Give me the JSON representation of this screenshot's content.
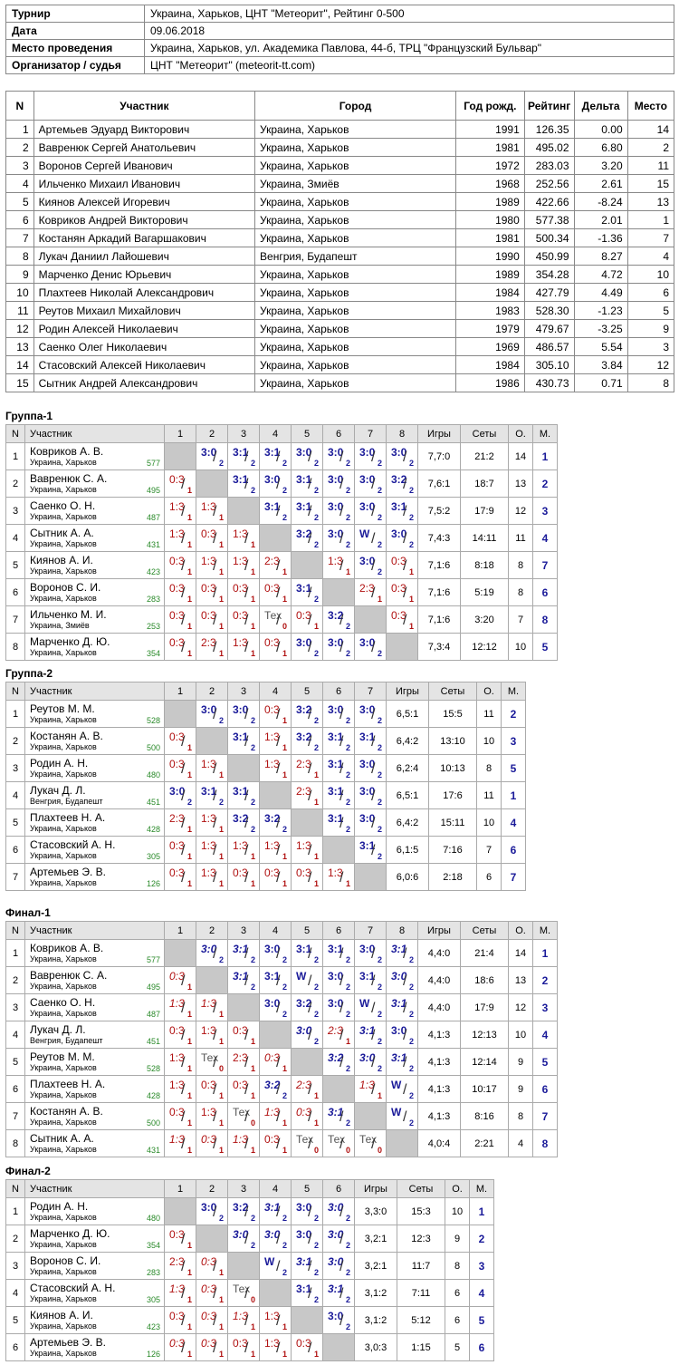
{
  "info": [
    {
      "k": "Турнир",
      "v": "Украина, Харьков, ЦНТ \"Метеорит\", Рейтинг 0-500"
    },
    {
      "k": "Дата",
      "v": "09.06.2018"
    },
    {
      "k": "Место проведения",
      "v": "Украина, Харьков, ул. Академика Павлова, 44-б, ТРЦ \"Французский Бульвар\""
    },
    {
      "k": "Организатор / судья",
      "v": "ЦНТ \"Метеорит\" (meteorit-tt.com)"
    }
  ],
  "participants_header": [
    "N",
    "Участник",
    "Город",
    "Год рожд.",
    "Рейтинг",
    "Дельта",
    "Место"
  ],
  "participants": [
    [
      "1",
      "Артемьев Эдуард Викторович",
      "Украина, Харьков",
      "1991",
      "126.35",
      "0.00",
      "14"
    ],
    [
      "2",
      "Вавренюк Сергей Анатольевич",
      "Украина, Харьков",
      "1981",
      "495.02",
      "6.80",
      "2"
    ],
    [
      "3",
      "Воронов Сергей Иванович",
      "Украина, Харьков",
      "1972",
      "283.03",
      "3.20",
      "11"
    ],
    [
      "4",
      "Ильченко Михаил Иванович",
      "Украина, Змиёв",
      "1968",
      "252.56",
      "2.61",
      "15"
    ],
    [
      "5",
      "Киянов Алексей Игоревич",
      "Украина, Харьков",
      "1989",
      "422.66",
      "-8.24",
      "13"
    ],
    [
      "6",
      "Ковриков Андрей Викторович",
      "Украина, Харьков",
      "1980",
      "577.38",
      "2.01",
      "1"
    ],
    [
      "7",
      "Костанян Аркадий Вагаршакович",
      "Украина, Харьков",
      "1981",
      "500.34",
      "-1.36",
      "7"
    ],
    [
      "8",
      "Лукач Даниил Лайошевич",
      "Венгрия, Будапешт",
      "1990",
      "450.99",
      "8.27",
      "4"
    ],
    [
      "9",
      "Марченко Денис Юрьевич",
      "Украина, Харьков",
      "1989",
      "354.28",
      "4.72",
      "10"
    ],
    [
      "10",
      "Плахтеев Николай Александрович",
      "Украина, Харьков",
      "1984",
      "427.79",
      "4.49",
      "6"
    ],
    [
      "11",
      "Реутов Михаил Михайлович",
      "Украина, Харьков",
      "1983",
      "528.30",
      "-1.23",
      "5"
    ],
    [
      "12",
      "Родин Алексей Николаевич",
      "Украина, Харьков",
      "1979",
      "479.67",
      "-3.25",
      "9"
    ],
    [
      "13",
      "Саенко Олег Николаевич",
      "Украина, Харьков",
      "1969",
      "486.57",
      "5.54",
      "3"
    ],
    [
      "14",
      "Стасовский Алексей Николаевич",
      "Украина, Харьков",
      "1984",
      "305.10",
      "3.84",
      "12"
    ],
    [
      "15",
      "Сытник Андрей Александрович",
      "Украина, Харьков",
      "1986",
      "430.73",
      "0.71",
      "8"
    ]
  ],
  "groups": [
    {
      "title": "Группа-1",
      "hdr": {
        "n": "N",
        "player": "Участник",
        "games": "Игры",
        "sets": "Сеты",
        "o": "О.",
        "m": "М."
      },
      "rows": [
        {
          "n": "1",
          "name": "Ковриков А. В.",
          "city": "Украина, Харьков",
          "rating": "577",
          "r": [
            "",
            "3:0|2",
            "3:1|2",
            "3:1|2",
            "3:0|2",
            "3:0|2",
            "3:0|2",
            "3:0|2"
          ],
          "games": "7,7:0",
          "sets": "21:2",
          "o": "14",
          "m": "1"
        },
        {
          "n": "2",
          "name": "Вавренюк С. А.",
          "city": "Украина, Харьков",
          "rating": "495",
          "r": [
            "0:3|1",
            "",
            "3:1|2",
            "3:0|2",
            "3:1|2",
            "3:0|2",
            "3:0|2",
            "3:2|2"
          ],
          "games": "7,6:1",
          "sets": "18:7",
          "o": "13",
          "m": "2"
        },
        {
          "n": "3",
          "name": "Саенко О. Н.",
          "city": "Украина, Харьков",
          "rating": "487",
          "r": [
            "1:3|1",
            "1:3|1",
            "",
            "3:1|2",
            "3:1|2",
            "3:0|2",
            "3:0|2",
            "3:1|2"
          ],
          "games": "7,5:2",
          "sets": "17:9",
          "o": "12",
          "m": "3"
        },
        {
          "n": "4",
          "name": "Сытник А. А.",
          "city": "Украина, Харьков",
          "rating": "431",
          "r": [
            "1:3|1",
            "0:3|1",
            "1:3|1",
            "",
            "3:2|2",
            "3:0|2",
            "W|2",
            "3:0|2"
          ],
          "games": "7,4:3",
          "sets": "14:11",
          "o": "11",
          "m": "4"
        },
        {
          "n": "5",
          "name": "Киянов А. И.",
          "city": "Украина, Харьков",
          "rating": "423",
          "r": [
            "0:3|1",
            "1:3|1",
            "1:3|1",
            "2:3|1",
            "",
            "1:3|1",
            "3:0|2",
            "0:3|1"
          ],
          "games": "7,1:6",
          "sets": "8:18",
          "o": "8",
          "m": "7"
        },
        {
          "n": "6",
          "name": "Воронов С. И.",
          "city": "Украина, Харьков",
          "rating": "283",
          "r": [
            "0:3|1",
            "0:3|1",
            "0:3|1",
            "0:3|1",
            "3:1|2",
            "",
            "2:3|1",
            "0:3|1"
          ],
          "games": "7,1:6",
          "sets": "5:19",
          "o": "8",
          "m": "6"
        },
        {
          "n": "7",
          "name": "Ильченко М. И.",
          "city": "Украина, Змиёв",
          "rating": "253",
          "r": [
            "0:3|1",
            "0:3|1",
            "0:3|1",
            "Тех|0",
            "0:3|1",
            "3:2|2",
            "",
            "0:3|1"
          ],
          "games": "7,1:6",
          "sets": "3:20",
          "o": "7",
          "m": "8"
        },
        {
          "n": "8",
          "name": "Марченко Д. Ю.",
          "city": "Украина, Харьков",
          "rating": "354",
          "r": [
            "0:3|1",
            "2:3|1",
            "1:3|1",
            "0:3|1",
            "3:0|2",
            "3:0|2",
            "3:0|2",
            ""
          ],
          "games": "7,3:4",
          "sets": "12:12",
          "o": "10",
          "m": "5"
        }
      ]
    },
    {
      "title": "Группа-2",
      "hdr": {
        "n": "N",
        "player": "Участник",
        "games": "Игры",
        "sets": "Сеты",
        "o": "О.",
        "m": "М."
      },
      "rows": [
        {
          "n": "1",
          "name": "Реутов М. М.",
          "city": "Украина, Харьков",
          "rating": "528",
          "r": [
            "",
            "3:0|2",
            "3:0|2",
            "0:3|1",
            "3:2|2",
            "3:0|2",
            "3:0|2"
          ],
          "games": "6,5:1",
          "sets": "15:5",
          "o": "11",
          "m": "2"
        },
        {
          "n": "2",
          "name": "Костанян А. В.",
          "city": "Украина, Харьков",
          "rating": "500",
          "r": [
            "0:3|1",
            "",
            "3:1|2",
            "1:3|1",
            "3:2|2",
            "3:1|2",
            "3:1|2"
          ],
          "games": "6,4:2",
          "sets": "13:10",
          "o": "10",
          "m": "3"
        },
        {
          "n": "3",
          "name": "Родин А. Н.",
          "city": "Украина, Харьков",
          "rating": "480",
          "r": [
            "0:3|1",
            "1:3|1",
            "",
            "1:3|1",
            "2:3|1",
            "3:1|2",
            "3:0|2"
          ],
          "games": "6,2:4",
          "sets": "10:13",
          "o": "8",
          "m": "5"
        },
        {
          "n": "4",
          "name": "Лукач Д. Л.",
          "city": "Венгрия, Будапешт",
          "rating": "451",
          "r": [
            "3:0|2",
            "3:1|2",
            "3:1|2",
            "",
            "2:3|1",
            "3:1|2",
            "3:0|2"
          ],
          "games": "6,5:1",
          "sets": "17:6",
          "o": "11",
          "m": "1"
        },
        {
          "n": "5",
          "name": "Плахтеев Н. А.",
          "city": "Украина, Харьков",
          "rating": "428",
          "r": [
            "2:3|1",
            "1:3|1",
            "3:2|2",
            "3:2|2",
            "",
            "3:1|2",
            "3:0|2"
          ],
          "games": "6,4:2",
          "sets": "15:11",
          "o": "10",
          "m": "4"
        },
        {
          "n": "6",
          "name": "Стасовский А. Н.",
          "city": "Украина, Харьков",
          "rating": "305",
          "r": [
            "0:3|1",
            "1:3|1",
            "1:3|1",
            "1:3|1",
            "1:3|1",
            "",
            "3:1|2"
          ],
          "games": "6,1:5",
          "sets": "7:16",
          "o": "7",
          "m": "6"
        },
        {
          "n": "7",
          "name": "Артемьев Э. В.",
          "city": "Украина, Харьков",
          "rating": "126",
          "r": [
            "0:3|1",
            "1:3|1",
            "0:3|1",
            "0:3|1",
            "0:3|1",
            "1:3|1",
            ""
          ],
          "games": "6,0:6",
          "sets": "2:18",
          "o": "6",
          "m": "7"
        }
      ]
    },
    {
      "title": "Финал-1",
      "hdr": {
        "n": "N",
        "player": "Участник",
        "games": "Игры",
        "sets": "Сеты",
        "o": "О.",
        "m": "М."
      },
      "rows": [
        {
          "n": "1",
          "name": "Ковриков А. В.",
          "city": "Украина, Харьков",
          "rating": "577",
          "r": [
            "",
            "3:0|2|i",
            "3:1|2|i",
            "3:0|2",
            "3:1|2",
            "3:1|2",
            "3:0|2",
            "3:1|2|i"
          ],
          "games": "4,4:0",
          "sets": "21:4",
          "o": "14",
          "m": "1"
        },
        {
          "n": "2",
          "name": "Вавренюк С. А.",
          "city": "Украина, Харьков",
          "rating": "495",
          "r": [
            "0:3|1|i",
            "",
            "3:1|2|i",
            "3:1|2",
            "W|2",
            "3:0|2",
            "3:1|2",
            "3:0|2|i"
          ],
          "games": "4,4:0",
          "sets": "18:6",
          "o": "13",
          "m": "2"
        },
        {
          "n": "3",
          "name": "Саенко О. Н.",
          "city": "Украина, Харьков",
          "rating": "487",
          "r": [
            "1:3|1|i",
            "1:3|1|i",
            "",
            "3:0|2",
            "3:2|2",
            "3:0|2",
            "W|2",
            "3:1|2|i"
          ],
          "games": "4,4:0",
          "sets": "17:9",
          "o": "12",
          "m": "3"
        },
        {
          "n": "4",
          "name": "Лукач Д. Л.",
          "city": "Венгрия, Будапешт",
          "rating": "451",
          "r": [
            "0:3|1",
            "1:3|1",
            "0:3|1",
            "",
            "3:0|2|i",
            "2:3|1|i",
            "3:1|2|i",
            "3:0|2"
          ],
          "games": "4,1:3",
          "sets": "12:13",
          "o": "10",
          "m": "4"
        },
        {
          "n": "5",
          "name": "Реутов М. М.",
          "city": "Украина, Харьков",
          "rating": "528",
          "r": [
            "1:3|1",
            "Тех|0",
            "2:3|1",
            "0:3|1|i",
            "",
            "3:2|2|i",
            "3:0|2|i",
            "3:1|2|i"
          ],
          "games": "4,1:3",
          "sets": "12:14",
          "o": "9",
          "m": "5"
        },
        {
          "n": "6",
          "name": "Плахтеев Н. А.",
          "city": "Украина, Харьков",
          "rating": "428",
          "r": [
            "1:3|1",
            "0:3|1",
            "0:3|1",
            "3:2|2|i",
            "2:3|1|i",
            "",
            "1:3|1|i",
            "W|2"
          ],
          "games": "4,1:3",
          "sets": "10:17",
          "o": "9",
          "m": "6"
        },
        {
          "n": "7",
          "name": "Костанян А. В.",
          "city": "Украина, Харьков",
          "rating": "500",
          "r": [
            "0:3|1",
            "1:3|1",
            "Тех|0",
            "1:3|1|i",
            "0:3|1|i",
            "3:1|2|i",
            "",
            "W|2"
          ],
          "games": "4,1:3",
          "sets": "8:16",
          "o": "8",
          "m": "7"
        },
        {
          "n": "8",
          "name": "Сытник А. А.",
          "city": "Украина, Харьков",
          "rating": "431",
          "r": [
            "1:3|1|i",
            "0:3|1|i",
            "1:3|1|i",
            "0:3|1",
            "Тех|0",
            "Тех|0",
            "Тех|0",
            ""
          ],
          "games": "4,0:4",
          "sets": "2:21",
          "o": "4",
          "m": "8"
        }
      ]
    },
    {
      "title": "Финал-2",
      "hdr": {
        "n": "N",
        "player": "Участник",
        "games": "Игры",
        "sets": "Сеты",
        "o": "О.",
        "m": "М."
      },
      "rows": [
        {
          "n": "1",
          "name": "Родин А. Н.",
          "city": "Украина, Харьков",
          "rating": "480",
          "r": [
            "",
            "3:0|2",
            "3:2|2",
            "3:1|2|i",
            "3:0|2",
            "3:0|2|i"
          ],
          "games": "3,3:0",
          "sets": "15:3",
          "o": "10",
          "m": "1"
        },
        {
          "n": "2",
          "name": "Марченко Д. Ю.",
          "city": "Украина, Харьков",
          "rating": "354",
          "r": [
            "0:3|1",
            "",
            "3:0|2|i",
            "3:0|2|i",
            "3:0|2",
            "3:0|2|i"
          ],
          "games": "3,2:1",
          "sets": "12:3",
          "o": "9",
          "m": "2"
        },
        {
          "n": "3",
          "name": "Воронов С. И.",
          "city": "Украина, Харьков",
          "rating": "283",
          "r": [
            "2:3|1",
            "0:3|1|i",
            "",
            "W|2",
            "3:1|2|i",
            "3:0|2|i"
          ],
          "games": "3,2:1",
          "sets": "11:7",
          "o": "8",
          "m": "3"
        },
        {
          "n": "4",
          "name": "Стасовский А. Н.",
          "city": "Украина, Харьков",
          "rating": "305",
          "r": [
            "1:3|1|i",
            "0:3|1|i",
            "Тех|0",
            "",
            "3:1|2",
            "3:1|2|i"
          ],
          "games": "3,1:2",
          "sets": "7:11",
          "o": "6",
          "m": "4"
        },
        {
          "n": "5",
          "name": "Киянов А. И.",
          "city": "Украина, Харьков",
          "rating": "423",
          "r": [
            "0:3|1",
            "0:3|1|i",
            "1:3|1|i",
            "1:3|1",
            "",
            "3:0|2"
          ],
          "games": "3,1:2",
          "sets": "5:12",
          "o": "6",
          "m": "5"
        },
        {
          "n": "6",
          "name": "Артемьев Э. В.",
          "city": "Украина, Харьков",
          "rating": "126",
          "r": [
            "0:3|1|i",
            "0:3|1|i",
            "0:3|1",
            "1:3|1",
            "0:3|1",
            ""
          ],
          "games": "3,0:3",
          "sets": "1:15",
          "o": "5",
          "m": "6"
        }
      ]
    }
  ]
}
